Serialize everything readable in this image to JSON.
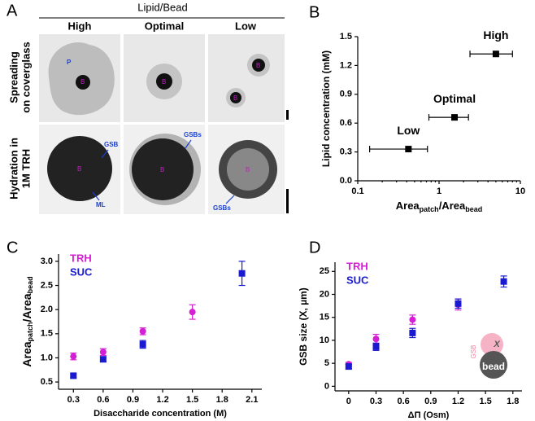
{
  "panel_a": {
    "label": "A",
    "header": "Lipid/Bead",
    "columns": [
      "High",
      "Optimal",
      "Low"
    ],
    "rows": [
      [
        "Spreading",
        "on coverglass"
      ],
      [
        "Hydration in",
        "1M TRH"
      ]
    ],
    "annotations": {
      "p": "P",
      "b": "B",
      "gsb": "GSB",
      "ml": "ML",
      "gsbs": "GSBs"
    }
  },
  "chart_data": [
    {
      "panel": "B",
      "type": "scatter",
      "xscale": "log",
      "orientation": "horizontal-error",
      "ylabel": "Lipid concentration (mM)",
      "xlabel": {
        "main": "Area",
        "sub1": "patch",
        "mid": "/Area",
        "sub2": "bead"
      },
      "x": [
        0.42,
        1.55,
        5.0
      ],
      "values": [
        0.33,
        0.66,
        1.32
      ],
      "x_lower": [
        0.14,
        0.75,
        2.4
      ],
      "x_upper": [
        0.72,
        2.3,
        8.0
      ],
      "point_labels": [
        "Low",
        "Optimal",
        "High"
      ],
      "color": "#000000",
      "xlim": [
        0.1,
        10
      ],
      "xticks": [
        0.1,
        1,
        10
      ],
      "ylim": [
        0,
        1.5
      ],
      "yticks": [
        {
          "value": 0,
          "label": "0.0"
        },
        0.3,
        0.6,
        0.9,
        1.2,
        1.5
      ]
    },
    {
      "panel": "C",
      "type": "scatter",
      "xscale": "linear",
      "xlabel": "Disaccharide concentration (M)",
      "ylabel": {
        "main": "Area",
        "sub1": "patch",
        "mid": "/Area",
        "sub2": "bead"
      },
      "series": [
        {
          "name": "TRH",
          "color": "#d41fd4",
          "marker": "circle",
          "x": [
            0.3,
            0.6,
            1.0,
            1.5
          ],
          "values": [
            1.03,
            1.12,
            1.55,
            1.95
          ],
          "errors": [
            0.07,
            0.07,
            0.07,
            0.15
          ]
        },
        {
          "name": "SUC",
          "color": "#1a1ad0",
          "marker": "square",
          "x": [
            0.3,
            0.6,
            1.0,
            2.0
          ],
          "values": [
            0.63,
            0.97,
            1.28,
            2.75
          ],
          "errors": [
            0.04,
            0.05,
            0.08,
            0.25
          ]
        }
      ],
      "xlim": [
        0.15,
        2.2
      ],
      "xticks": [
        0.3,
        0.6,
        0.9,
        1.2,
        1.5,
        1.8,
        2.1
      ],
      "ylim": [
        0.35,
        3.15
      ],
      "yticks": [
        0.5,
        {
          "value": 1,
          "label": "1.0"
        },
        1.5,
        {
          "value": 2,
          "label": "2.0"
        },
        2.5,
        {
          "value": 3,
          "label": "3.0"
        }
      ]
    },
    {
      "panel": "D",
      "type": "scatter",
      "xscale": "linear",
      "xlabel": "ΔΠ (Osm)",
      "ylabel": "GSB size (X, µm)",
      "inset": {
        "gsb": "GSB",
        "bead": "bead",
        "x": "X"
      },
      "series": [
        {
          "name": "TRH",
          "color": "#d41fd4",
          "marker": "circle",
          "x": [
            0,
            0.3,
            0.7,
            1.2
          ],
          "values": [
            4.8,
            10.3,
            14.5,
            17.8
          ],
          "errors": [
            0.4,
            1.0,
            1.0,
            1.2
          ]
        },
        {
          "name": "SUC",
          "color": "#1a1ad0",
          "marker": "square",
          "x": [
            0,
            0.3,
            0.7,
            1.2,
            1.7
          ],
          "values": [
            4.3,
            8.6,
            11.6,
            18.0,
            22.8
          ],
          "errors": [
            0.5,
            0.8,
            1.0,
            1.0,
            1.2
          ]
        }
      ],
      "xlim": [
        -0.15,
        1.9
      ],
      "xticks": [
        0,
        0.3,
        0.6,
        0.9,
        1.2,
        1.5,
        1.8
      ],
      "ylim": [
        -1,
        27
      ],
      "yticks": [
        0,
        5,
        10,
        15,
        20,
        25
      ]
    }
  ]
}
